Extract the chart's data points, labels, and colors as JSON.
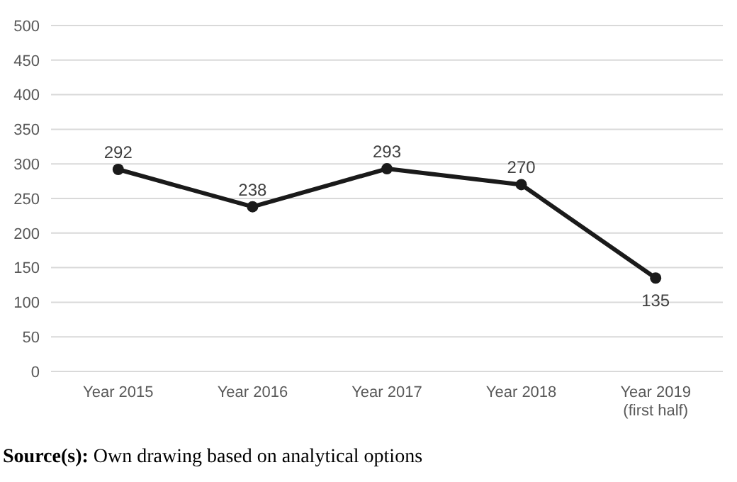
{
  "chart_data": {
    "type": "line",
    "categories": [
      "Year 2015",
      "Year 2016",
      "Year 2017",
      "Year 2018",
      "Year 2019 (first half)"
    ],
    "series": [
      {
        "color": "#1a1a1a",
        "values": [
          292,
          238,
          293,
          270,
          135
        ]
      }
    ],
    "ylim": [
      0,
      500
    ],
    "yticks": [
      0,
      50,
      100,
      150,
      200,
      250,
      300,
      350,
      400,
      450,
      500
    ],
    "grid": "y",
    "marker": "circle",
    "line_style": "solid",
    "data_labels": true,
    "annotations": [
      "Source(s): Own drawing based on analytical options"
    ]
  }
}
